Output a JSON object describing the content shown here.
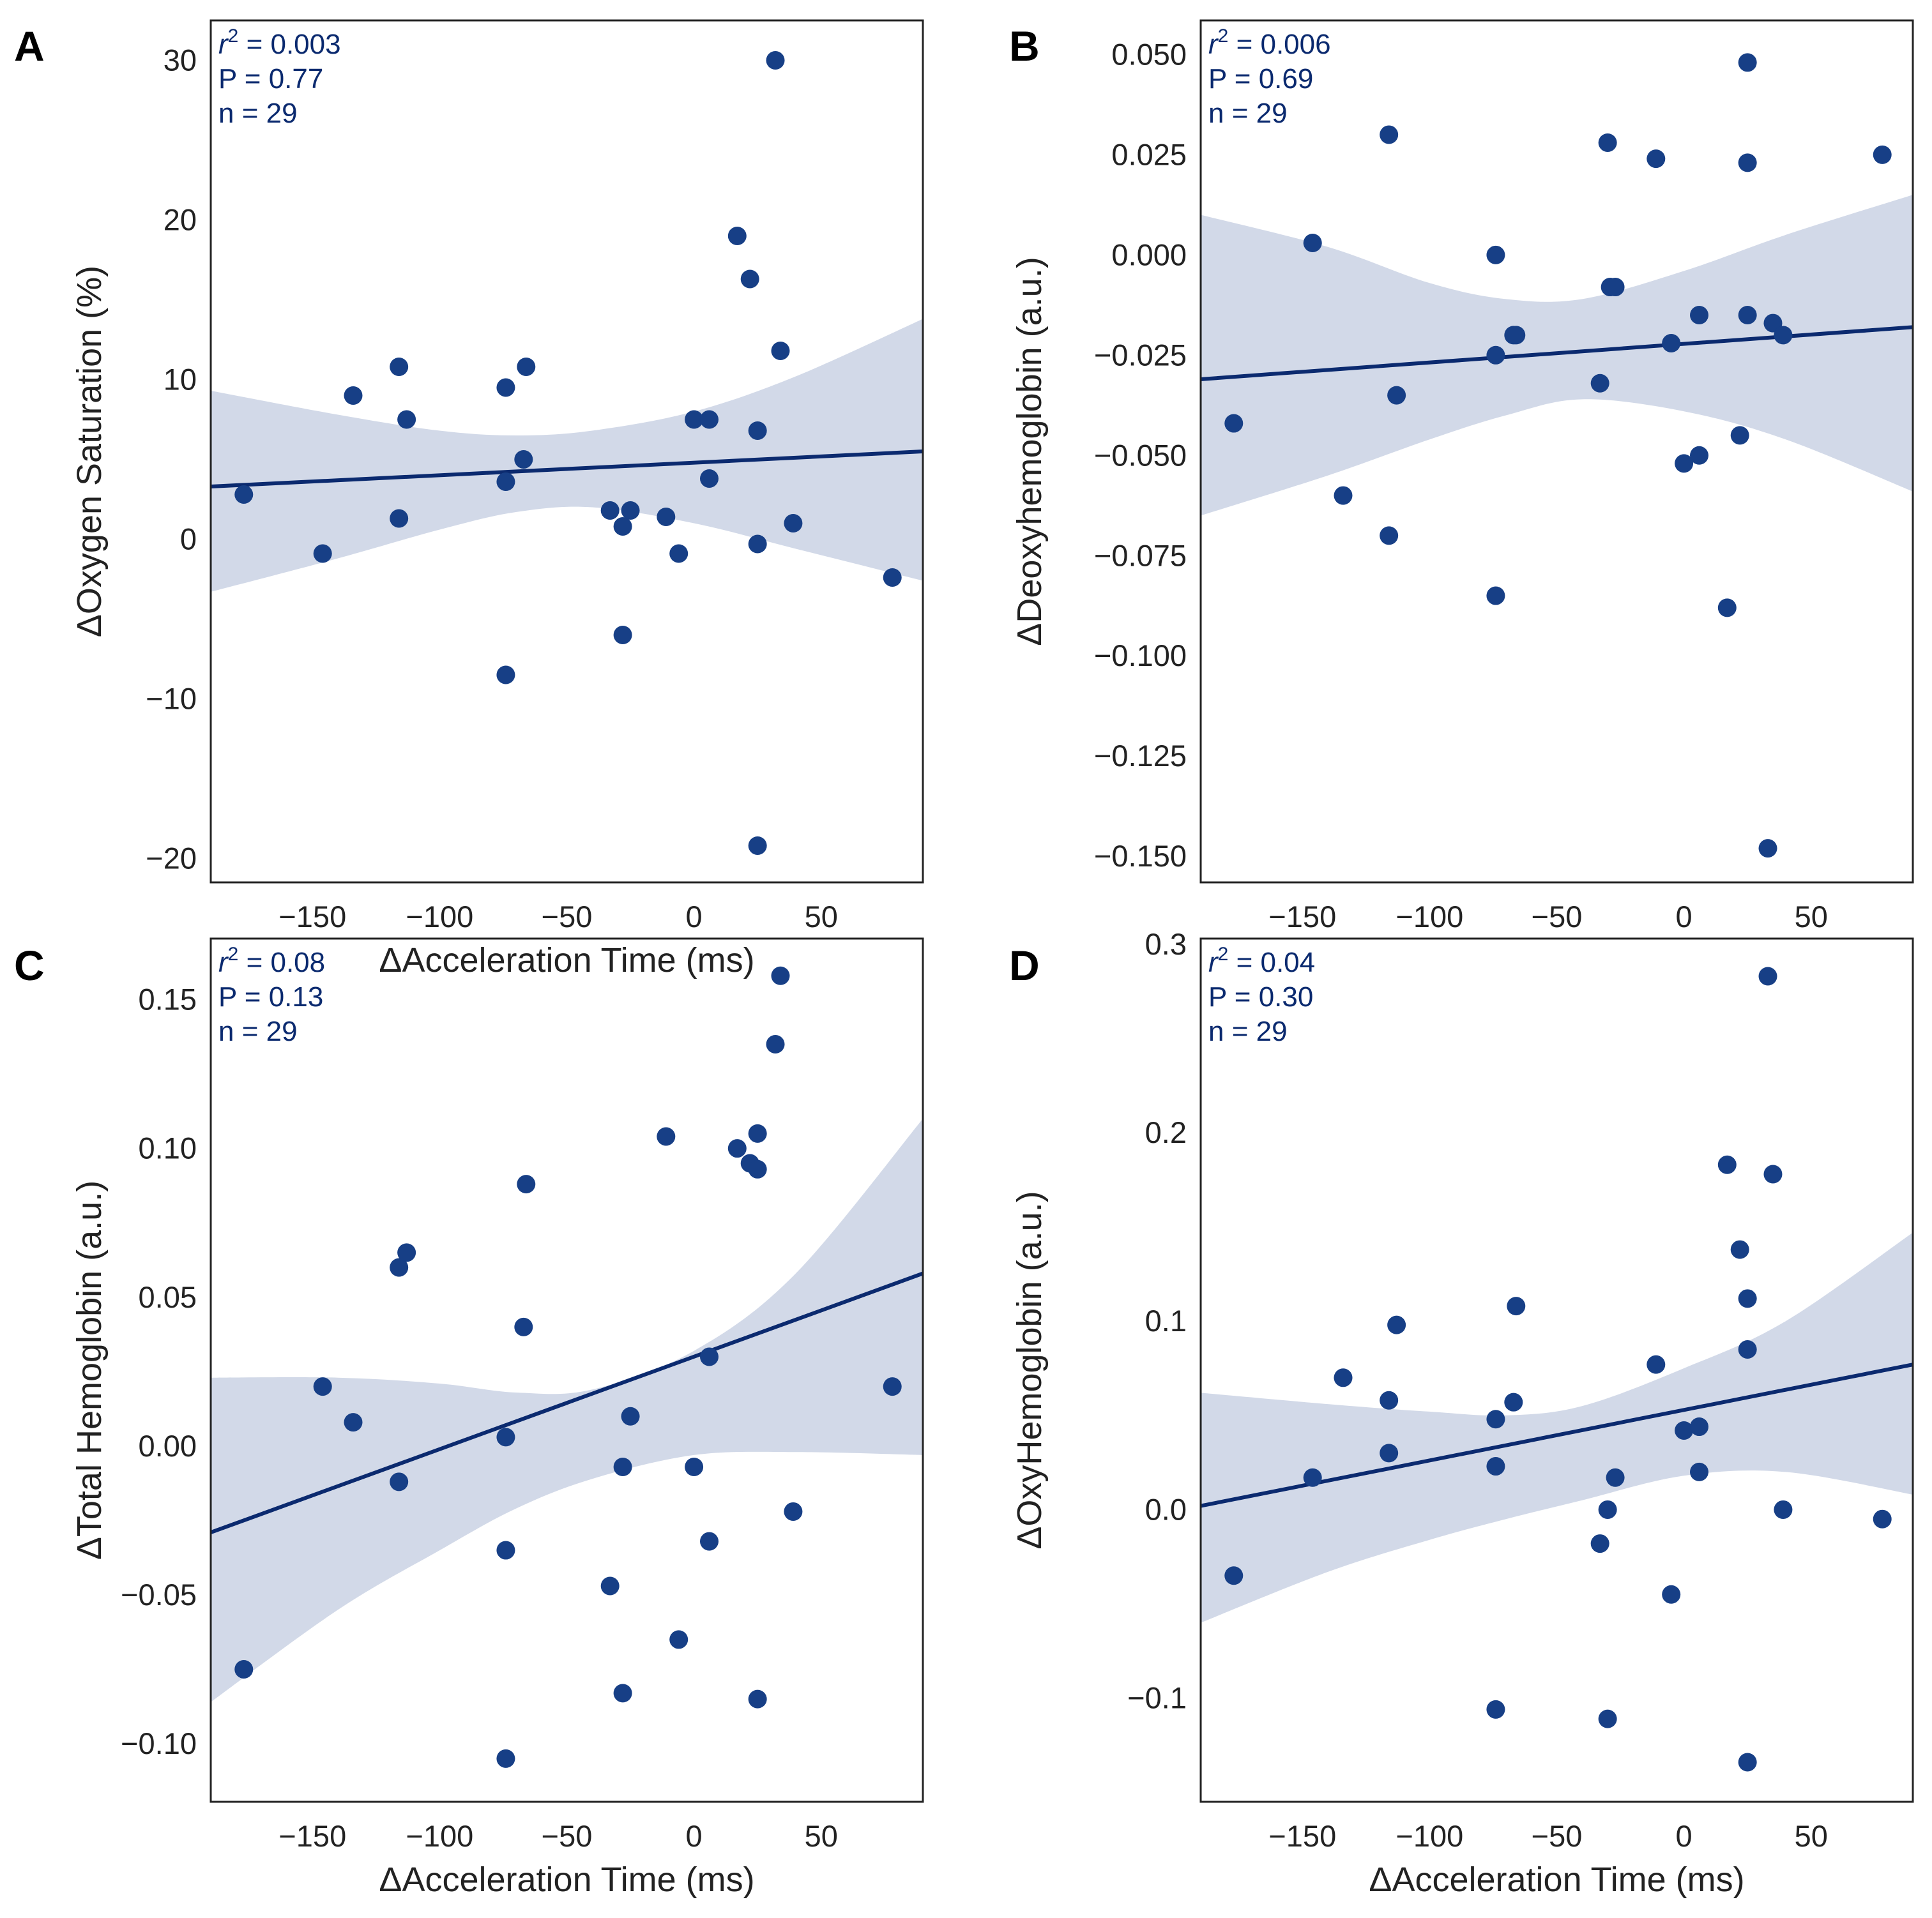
{
  "figure": {
    "theme_color": "#0b2a6f",
    "point_color": "#173f86",
    "band_color": "#d2d9e8"
  },
  "chart_data": [
    {
      "id": "A",
      "type": "scatter",
      "panel_label": "A",
      "xlabel": "ΔAcceleration Time (ms)",
      "ylabel": "ΔOxygen Saturation (%)",
      "xlim": [
        -190,
        90
      ],
      "ylim": [
        -21.5,
        32.5
      ],
      "xticks": [
        -150,
        -100,
        -50,
        0,
        50
      ],
      "xtick_labels": [
        "−150",
        "−100",
        "−50",
        "0",
        "50"
      ],
      "yticks": [
        -20,
        -10,
        0,
        10,
        20,
        30
      ],
      "ytick_labels": [
        "−20",
        "−10",
        "0",
        "10",
        "20",
        "30"
      ],
      "stats": {
        "r2_label": "r",
        "r2_sup": "2",
        "r2_value": " = 0.003",
        "p_text": "P = 0.77",
        "n_text": "n = 29"
      },
      "x": [
        -177,
        -146,
        -134,
        -116,
        -116,
        -113,
        -74,
        -74,
        -74,
        -67,
        -66,
        -33,
        -28,
        -28,
        -25,
        -11,
        -6,
        0,
        6,
        6,
        17,
        22,
        25,
        25,
        25,
        32,
        34,
        39,
        78
      ],
      "y": [
        2.8,
        -0.9,
        9.0,
        10.8,
        1.3,
        7.5,
        9.5,
        3.6,
        -8.5,
        5.0,
        10.8,
        1.8,
        0.8,
        -6.0,
        1.8,
        1.4,
        -0.9,
        7.5,
        3.8,
        7.5,
        19.0,
        16.3,
        6.8,
        -0.3,
        -19.2,
        30.0,
        11.8,
        1.0,
        -2.4
      ],
      "fit": {
        "x": [
          -190,
          90
        ],
        "y": [
          3.3,
          5.5
        ]
      },
      "ci_band": {
        "x": [
          -190,
          -140,
          -100,
          -70,
          -40,
          0,
          40,
          90
        ],
        "upper": [
          9.3,
          7.8,
          6.8,
          6.5,
          6.8,
          8.0,
          10.2,
          13.8
        ],
        "lower": [
          -3.3,
          -1.2,
          0.6,
          1.7,
          2.0,
          1.0,
          -0.6,
          -2.6
        ]
      }
    },
    {
      "id": "B",
      "type": "scatter",
      "panel_label": "B",
      "xlabel": "",
      "ylabel": "ΔDeoxyhemoglobin (a.u.)",
      "xlim": [
        -190,
        90
      ],
      "ylim": [
        -0.1565,
        0.0585
      ],
      "xticks": [
        -150,
        -100,
        -50,
        0,
        50
      ],
      "xtick_labels": [
        "−150",
        "−100",
        "−50",
        "0",
        "50"
      ],
      "yticks": [
        -0.15,
        -0.125,
        -0.1,
        -0.075,
        -0.05,
        -0.025,
        0.0,
        0.025,
        0.05
      ],
      "ytick_labels": [
        "−0.150",
        "−0.125",
        "−0.100",
        "−0.075",
        "−0.050",
        "−0.025",
        "0.000",
        "0.025",
        "0.050"
      ],
      "stats": {
        "r2_label": "r",
        "r2_sup": "2",
        "r2_value": " = 0.006",
        "p_text": "P = 0.69",
        "n_text": "n = 29"
      },
      "x": [
        -177,
        -146,
        -134,
        -116,
        -116,
        -113,
        -74,
        -74,
        -74,
        -67,
        -66,
        -33,
        -30,
        -29,
        -27,
        -11,
        -5,
        0,
        6,
        6,
        17,
        22,
        25,
        25,
        25,
        33,
        35,
        39,
        78
      ],
      "y": [
        -0.042,
        0.003,
        -0.06,
        0.03,
        -0.07,
        -0.035,
        0.0,
        -0.025,
        -0.085,
        -0.02,
        -0.02,
        -0.032,
        0.028,
        -0.008,
        -0.008,
        0.024,
        -0.022,
        -0.052,
        -0.015,
        -0.05,
        -0.088,
        -0.045,
        0.048,
        0.023,
        -0.015,
        -0.148,
        -0.017,
        -0.02,
        0.025
      ],
      "fit": {
        "x": [
          -190,
          90
        ],
        "y": [
          -0.031,
          -0.018
        ]
      },
      "ci_band": {
        "x": [
          -190,
          -140,
          -100,
          -70,
          -40,
          0,
          40,
          90
        ],
        "upper": [
          0.01,
          0.002,
          -0.007,
          -0.011,
          -0.011,
          -0.004,
          0.005,
          0.015
        ],
        "lower": [
          -0.065,
          -0.055,
          -0.046,
          -0.04,
          -0.036,
          -0.039,
          -0.046,
          -0.059
        ]
      }
    },
    {
      "id": "C",
      "type": "scatter",
      "panel_label": "C",
      "xlabel": "ΔAcceleration Time (ms)",
      "ylabel": "ΔTotal Hemoglobin (a.u.)",
      "xlim": [
        -190,
        90
      ],
      "ylim": [
        -0.1195,
        0.1705
      ],
      "xticks": [
        -150,
        -100,
        -50,
        0,
        50
      ],
      "xtick_labels": [
        "−150",
        "−100",
        "−50",
        "0",
        "50"
      ],
      "yticks": [
        -0.1,
        -0.05,
        0.0,
        0.05,
        0.1,
        0.15
      ],
      "ytick_labels": [
        "−0.10",
        "−0.05",
        "0.00",
        "0.05",
        "0.10",
        "0.15"
      ],
      "stats": {
        "r2_label": "r",
        "r2_sup": "2",
        "r2_value": " = 0.08",
        "p_text": "P = 0.13",
        "n_text": "n = 29"
      },
      "x": [
        -177,
        -146,
        -134,
        -116,
        -116,
        -113,
        -74,
        -74,
        -74,
        -67,
        -66,
        -33,
        -28,
        -28,
        -25,
        -11,
        -6,
        0,
        6,
        6,
        17,
        22,
        25,
        25,
        25,
        32,
        34,
        39,
        78
      ],
      "y": [
        -0.075,
        0.02,
        0.008,
        0.06,
        -0.012,
        0.065,
        0.003,
        -0.035,
        -0.105,
        0.04,
        0.088,
        -0.047,
        -0.007,
        -0.083,
        0.01,
        0.104,
        -0.065,
        -0.007,
        -0.032,
        0.03,
        0.1,
        0.095,
        0.105,
        0.093,
        -0.085,
        0.135,
        0.158,
        -0.022,
        0.02
      ],
      "fit": {
        "x": [
          -190,
          90
        ],
        "y": [
          -0.029,
          0.058
        ]
      },
      "ci_band": {
        "x": [
          -190,
          -140,
          -100,
          -70,
          -40,
          0,
          40,
          90
        ],
        "upper": [
          0.023,
          0.023,
          0.021,
          0.018,
          0.019,
          0.032,
          0.058,
          0.11
        ],
        "lower": [
          -0.086,
          -0.055,
          -0.035,
          -0.021,
          -0.011,
          -0.003,
          -0.002,
          -0.003
        ]
      }
    },
    {
      "id": "D",
      "type": "scatter",
      "panel_label": "D",
      "xlabel": "ΔAcceleration Time (ms)",
      "ylabel": "ΔOxyHemoglobin (a.u.)",
      "xlim": [
        -190,
        90
      ],
      "ylim": [
        -0.155,
        0.303
      ],
      "xticks": [
        -150,
        -100,
        -50,
        0,
        50
      ],
      "xtick_labels": [
        "−150",
        "−100",
        "−50",
        "0",
        "50"
      ],
      "yticks": [
        -0.1,
        0.0,
        0.1,
        0.2,
        0.3
      ],
      "ytick_labels": [
        "−0.1",
        "0.0",
        "0.1",
        "0.2",
        "0.3"
      ],
      "stats": {
        "r2_label": "r",
        "r2_sup": "2",
        "r2_value": " = 0.04",
        "p_text": "P = 0.30",
        "n_text": "n = 29"
      },
      "x": [
        -177,
        -146,
        -134,
        -116,
        -116,
        -113,
        -74,
        -74,
        -74,
        -67,
        -66,
        -33,
        -30,
        -30,
        -27,
        -11,
        -5,
        0,
        6,
        6,
        17,
        22,
        25,
        25,
        25,
        33,
        35,
        39,
        78
      ],
      "y": [
        -0.035,
        0.017,
        0.07,
        0.058,
        0.03,
        0.098,
        0.048,
        0.023,
        -0.106,
        0.057,
        0.108,
        -0.018,
        0.0,
        -0.111,
        0.017,
        0.077,
        -0.045,
        0.042,
        0.02,
        0.044,
        0.183,
        0.138,
        0.112,
        0.085,
        -0.134,
        0.283,
        0.178,
        0.0,
        -0.005
      ],
      "fit": {
        "x": [
          -190,
          90
        ],
        "y": [
          0.002,
          0.077
        ]
      },
      "ci_band": {
        "x": [
          -190,
          -140,
          -100,
          -70,
          -40,
          0,
          40,
          90
        ],
        "upper": [
          0.062,
          0.056,
          0.052,
          0.05,
          0.055,
          0.075,
          0.1,
          0.147
        ],
        "lower": [
          -0.06,
          -0.033,
          -0.016,
          -0.005,
          0.005,
          0.018,
          0.02,
          0.008
        ]
      }
    }
  ]
}
